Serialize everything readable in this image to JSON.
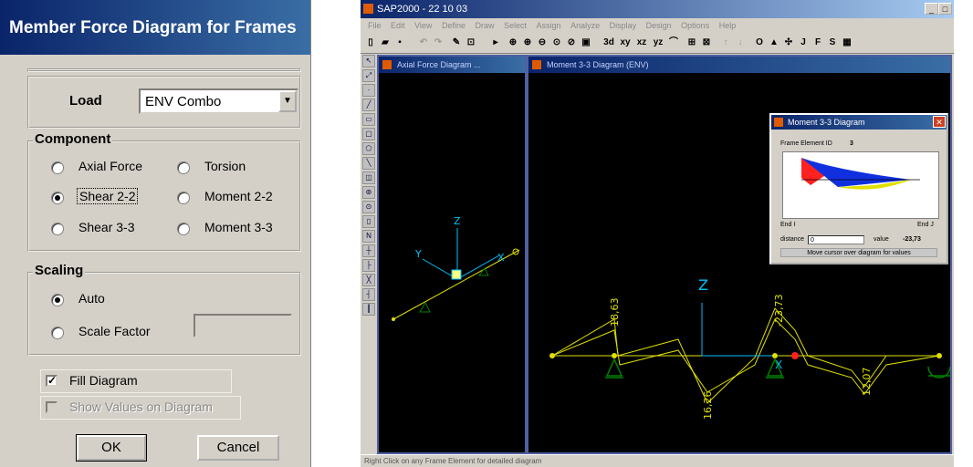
{
  "dialog": {
    "title": "Member Force Diagram for Frames",
    "load_label": "Load",
    "load_value": "ENV Combo",
    "component_title": "Component",
    "components": {
      "axial": "Axial Force",
      "torsion": "Torsion",
      "shear22": "Shear 2-2",
      "moment22": "Moment 2-2",
      "shear33": "Shear 3-3",
      "moment33": "Moment 3-3"
    },
    "selected_component": "Shear 2-2",
    "scaling_title": "Scaling",
    "auto_label": "Auto",
    "scale_factor_label": "Scale Factor",
    "scale_factor_value": "",
    "fill_diagram_label": "Fill Diagram",
    "fill_diagram_checked": true,
    "show_values_label": "Show Values on Diagram",
    "show_values_checked": false,
    "ok_label": "OK",
    "cancel_label": "Cancel"
  },
  "sap": {
    "title": "SAP2000 - 22 10 03",
    "menu": [
      "File",
      "Edit",
      "View",
      "Define",
      "Draw",
      "Select",
      "Assign",
      "Analyze",
      "Display",
      "Design",
      "Options",
      "Help"
    ],
    "toolbar_text": [
      "3d",
      "xy",
      "xz",
      "yz"
    ],
    "left_pane_title": "Axial Force Diagram ...",
    "right_pane_title": "Moment 3-3 Diagram (ENV)",
    "status": "Right Click on any Frame Element for detailed diagram",
    "axes": {
      "x": "X",
      "y": "Y",
      "z": "Z"
    },
    "labels": {
      "l1": "-18,63",
      "l2": "16,26",
      "l3": "-23,73",
      "l4": "12,07"
    }
  },
  "popup": {
    "title": "Moment 3-3 Diagram",
    "frame_id_label": "Frame Element ID",
    "frame_id_value": "3",
    "end_i": "End I",
    "end_j": "End J",
    "distance_label": "distance",
    "distance_value": "0",
    "value_label": "value",
    "value_value": "-23,73",
    "hint": "Move cursor over diagram for values"
  },
  "colors": {
    "title_blue": "#0a246a",
    "diagram_yellow": "#e0e000",
    "axis_cyan": "#00c0ff",
    "support_green": "#008000"
  }
}
